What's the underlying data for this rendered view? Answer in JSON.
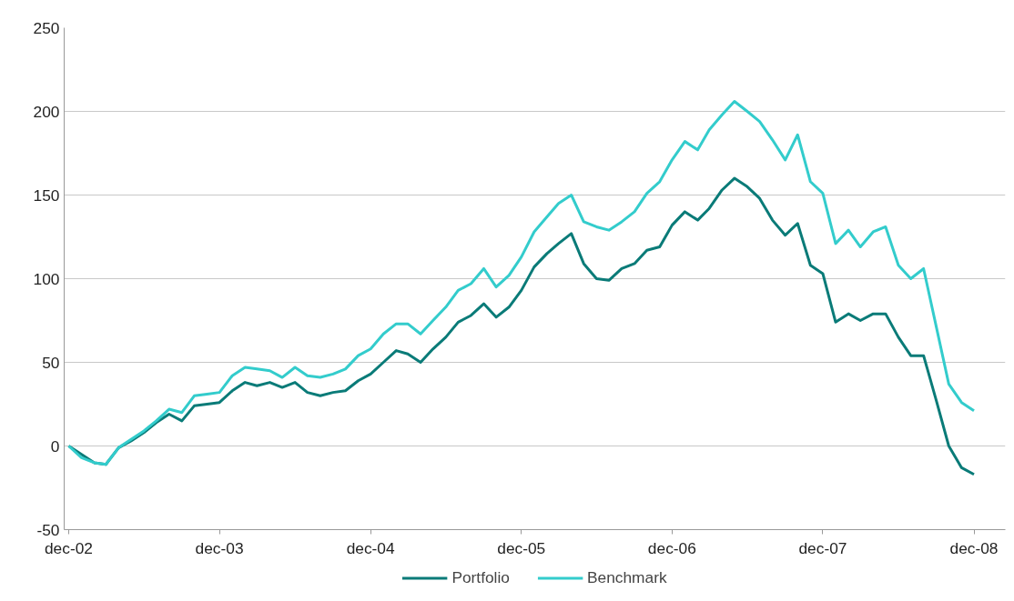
{
  "chart_data": {
    "type": "line",
    "x": [
      "2002-12",
      "2003-01",
      "2003-02",
      "2003-03",
      "2003-04",
      "2003-05",
      "2003-06",
      "2003-07",
      "2003-08",
      "2003-09",
      "2003-10",
      "2003-11",
      "2003-12",
      "2004-01",
      "2004-02",
      "2004-03",
      "2004-04",
      "2004-05",
      "2004-06",
      "2004-07",
      "2004-08",
      "2004-09",
      "2004-10",
      "2004-11",
      "2004-12",
      "2005-01",
      "2005-02",
      "2005-03",
      "2005-04",
      "2005-05",
      "2005-06",
      "2005-07",
      "2005-08",
      "2005-09",
      "2005-10",
      "2005-11",
      "2005-12",
      "2006-01",
      "2006-02",
      "2006-03",
      "2006-04",
      "2006-05",
      "2006-06",
      "2006-07",
      "2006-08",
      "2006-09",
      "2006-10",
      "2006-11",
      "2006-12",
      "2007-01",
      "2007-02",
      "2007-03",
      "2007-04",
      "2007-05",
      "2007-06",
      "2007-07",
      "2007-08",
      "2007-09",
      "2007-10",
      "2007-11",
      "2007-12",
      "2008-01",
      "2008-02",
      "2008-03",
      "2008-04",
      "2008-05",
      "2008-06",
      "2008-07",
      "2008-08",
      "2008-09",
      "2008-10",
      "2008-11",
      "2008-12"
    ],
    "series": [
      {
        "name": "Portfolio",
        "color": "#0a7b78",
        "values": [
          0,
          -5,
          -10,
          -11,
          -1,
          3,
          8,
          14,
          19,
          15,
          24,
          25,
          26,
          33,
          38,
          36,
          38,
          35,
          38,
          32,
          30,
          32,
          33,
          39,
          43,
          50,
          57,
          55,
          50,
          58,
          65,
          74,
          78,
          85,
          77,
          83,
          93,
          107,
          115,
          121,
          127,
          109,
          100,
          99,
          106,
          109,
          117,
          119,
          132,
          140,
          135,
          142,
          153,
          160,
          155,
          148,
          135,
          126,
          133,
          108,
          103,
          74,
          79,
          75,
          79,
          79,
          65,
          54,
          54,
          27,
          0,
          -13,
          -17
        ]
      },
      {
        "name": "Benchmark",
        "color": "#33cccc",
        "values": [
          0,
          -7,
          -10,
          -11,
          -1,
          4,
          9,
          15,
          22,
          20,
          30,
          31,
          32,
          42,
          47,
          46,
          45,
          41,
          47,
          42,
          41,
          43,
          46,
          54,
          58,
          67,
          73,
          73,
          67,
          75,
          83,
          93,
          97,
          106,
          95,
          102,
          113,
          128,
          137,
          145,
          150,
          134,
          131,
          129,
          134,
          140,
          151,
          158,
          171,
          182,
          177,
          189,
          198,
          206,
          200,
          194,
          183,
          171,
          186,
          158,
          151,
          121,
          129,
          119,
          128,
          131,
          108,
          100,
          106,
          71,
          37,
          26,
          21
        ]
      }
    ],
    "xlim": [
      "2002-11-20",
      "2009-02-15"
    ],
    "xticks": [
      {
        "value": "2002-12",
        "label": "dec-02"
      },
      {
        "value": "2003-12",
        "label": "dec-03"
      },
      {
        "value": "2004-12",
        "label": "dec-04"
      },
      {
        "value": "2005-12",
        "label": "dec-05"
      },
      {
        "value": "2006-12",
        "label": "dec-06"
      },
      {
        "value": "2007-12",
        "label": "dec-07"
      },
      {
        "value": "2008-12",
        "label": "dec-08"
      }
    ],
    "ylim": [
      -50,
      250
    ],
    "yticks": [
      -50,
      0,
      50,
      100,
      150,
      200,
      250
    ],
    "grid": "y",
    "legend": "bottom",
    "marker": "none",
    "line_style": "solid"
  }
}
